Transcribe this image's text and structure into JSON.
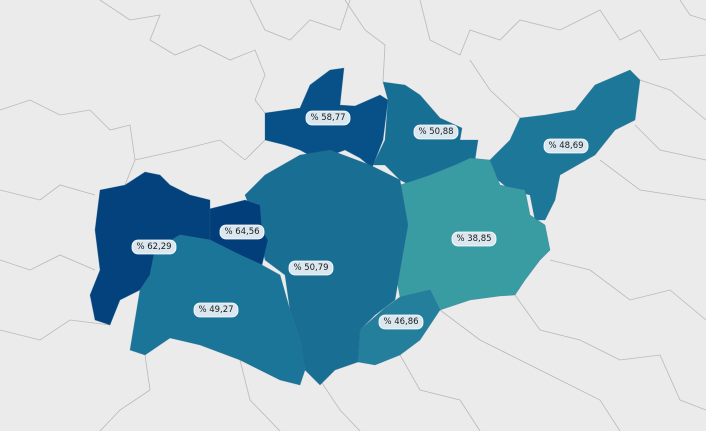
{
  "map": {
    "label_prefix": "%",
    "regions": [
      {
        "id": "r-north",
        "value": "58,77",
        "color": "#075088"
      },
      {
        "id": "r-northeast",
        "value": "50,88",
        "color": "#176f93"
      },
      {
        "id": "r-east",
        "value": "48,69",
        "color": "#1d7799"
      },
      {
        "id": "r-southeast",
        "value": "38,85",
        "color": "#3a9ca3"
      },
      {
        "id": "r-south-east-small",
        "value": "46,86",
        "color": "#247f9c"
      },
      {
        "id": "r-center",
        "value": "50,79",
        "color": "#186f93"
      },
      {
        "id": "r-west-small",
        "value": "64,56",
        "color": "#023f7a"
      },
      {
        "id": "r-west",
        "value": "62,29",
        "color": "#04427e"
      },
      {
        "id": "r-southwest",
        "value": "49,27",
        "color": "#1b7598"
      }
    ]
  }
}
